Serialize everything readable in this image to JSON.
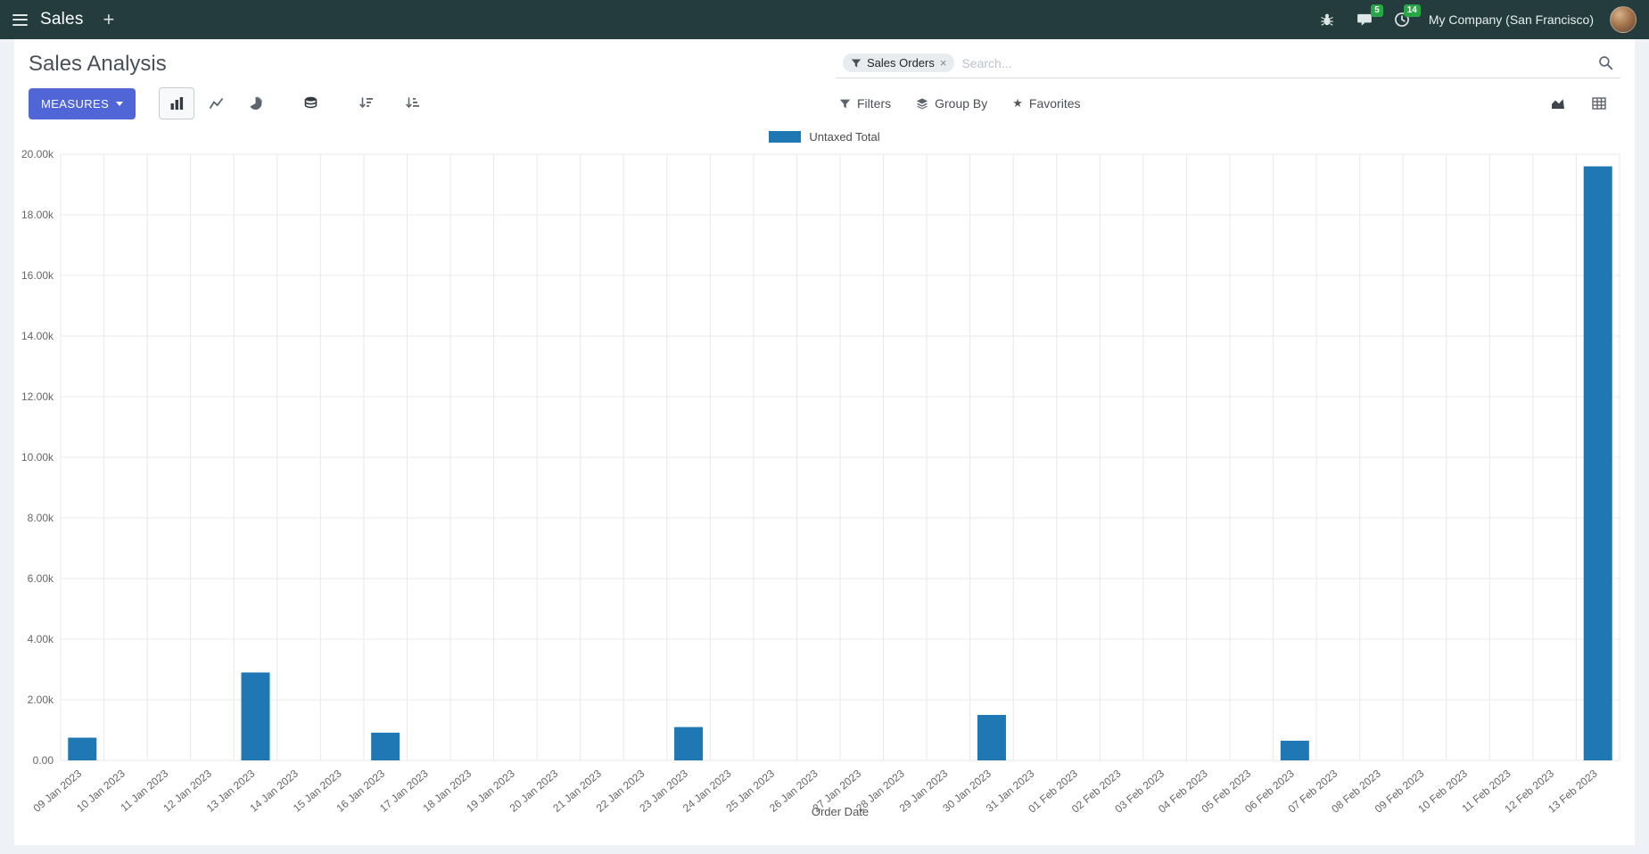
{
  "navbar": {
    "app_name": "Sales",
    "company": "My Company (San Francisco)",
    "message_badge": "5",
    "activity_badge": "14"
  },
  "control_panel": {
    "title": "Sales Analysis",
    "measures_label": "MEASURES",
    "filters_label": "Filters",
    "group_by_label": "Group By",
    "favorites_label": "Favorites",
    "search": {
      "facet": "Sales Orders",
      "facet_remove": "×",
      "placeholder": "Search..."
    }
  },
  "colors": {
    "navbar_bg": "#243c3d",
    "primary_button": "#5166d6",
    "badge_green": "#28a745",
    "bar_color": "#1f77b4"
  },
  "chart_data": {
    "type": "bar",
    "title": "",
    "xlabel": "Order Date",
    "ylabel": "",
    "ylim": [
      0,
      20000
    ],
    "grid": true,
    "legend_position": "top-center",
    "y_ticks": [
      "20.00k",
      "18.00k",
      "16.00k",
      "14.00k",
      "12.00k",
      "10.00k",
      "8.00k",
      "6.00k",
      "4.00k",
      "2.00k",
      "0.00"
    ],
    "categories": [
      "09 Jan 2023",
      "10 Jan 2023",
      "11 Jan 2023",
      "12 Jan 2023",
      "13 Jan 2023",
      "14 Jan 2023",
      "15 Jan 2023",
      "16 Jan 2023",
      "17 Jan 2023",
      "18 Jan 2023",
      "19 Jan 2023",
      "20 Jan 2023",
      "21 Jan 2023",
      "22 Jan 2023",
      "23 Jan 2023",
      "24 Jan 2023",
      "25 Jan 2023",
      "26 Jan 2023",
      "27 Jan 2023",
      "28 Jan 2023",
      "29 Jan 2023",
      "30 Jan 2023",
      "31 Jan 2023",
      "01 Feb 2023",
      "02 Feb 2023",
      "03 Feb 2023",
      "04 Feb 2023",
      "05 Feb 2023",
      "06 Feb 2023",
      "07 Feb 2023",
      "08 Feb 2023",
      "09 Feb 2023",
      "10 Feb 2023",
      "11 Feb 2023",
      "12 Feb 2023",
      "13 Feb 2023"
    ],
    "series": [
      {
        "name": "Untaxed Total",
        "color": "#1f77b4",
        "values": [
          750,
          0,
          0,
          0,
          2900,
          0,
          0,
          915,
          0,
          0,
          0,
          0,
          0,
          0,
          1100,
          0,
          0,
          0,
          0,
          0,
          0,
          1500,
          0,
          0,
          0,
          0,
          0,
          0,
          650,
          0,
          0,
          0,
          0,
          0,
          0,
          19600
        ]
      }
    ]
  }
}
